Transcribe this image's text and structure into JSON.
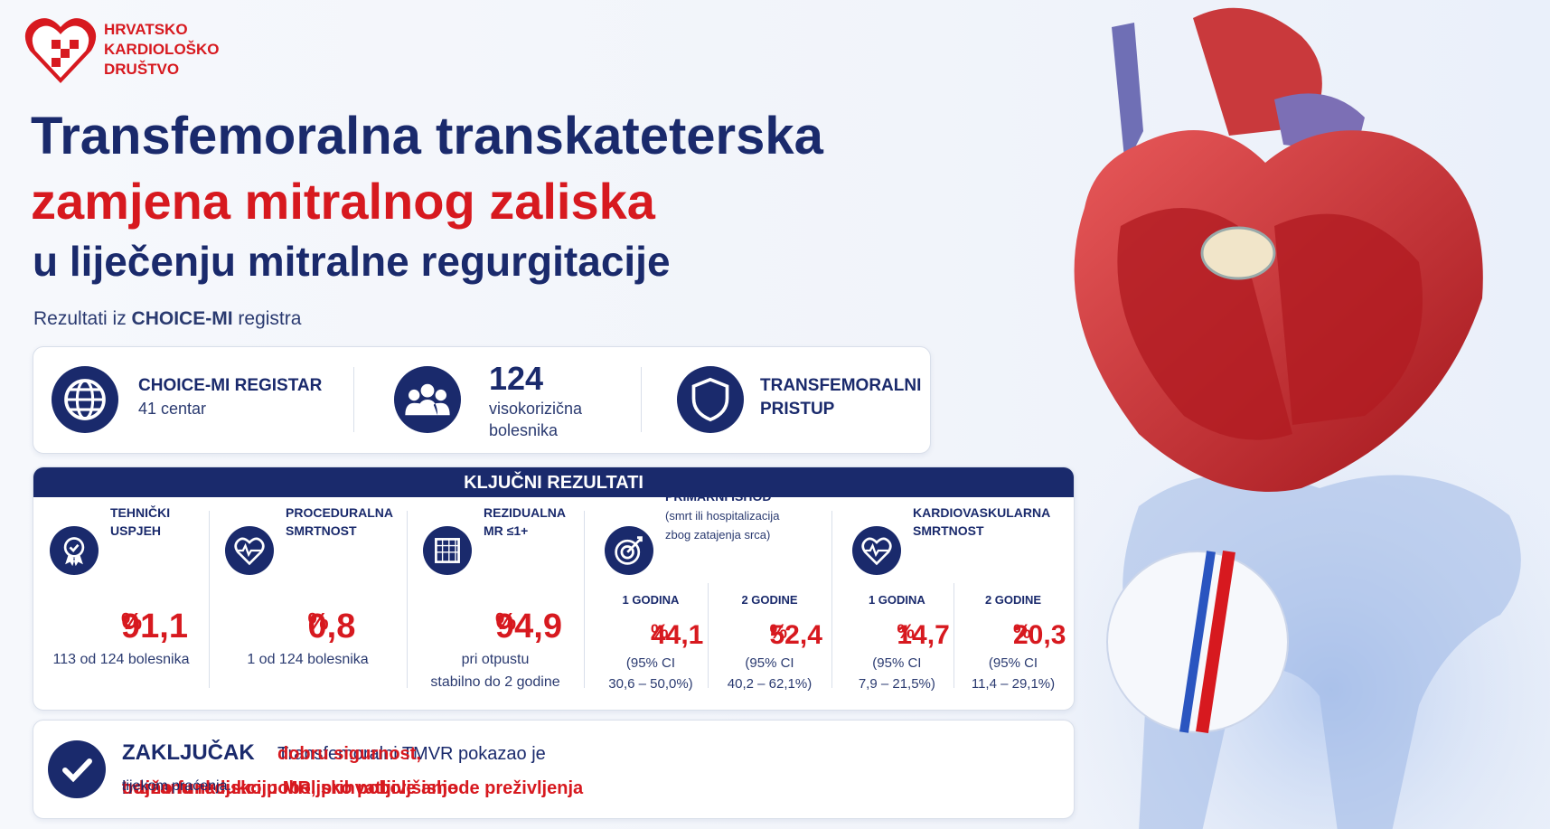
{
  "logo": {
    "lines": [
      "HRVATSKO",
      "KARDIOLOŠKO",
      "DRUŠTVO"
    ]
  },
  "title": {
    "line1": "Transfemoralna transkateterska",
    "line2": "zamjena mitralnog zaliska",
    "line3": "u liječenju mitralne regurgitacije"
  },
  "subtitle": {
    "prefix": "Rezultati iz",
    "highlight": "CHOICE-MI",
    "suffix": "registra"
  },
  "overview": [
    {
      "lines": [
        "CHOICE-MI REGISTAR"
      ],
      "detail": [
        "41 centar"
      ]
    },
    {
      "lines": [
        "124"
      ],
      "detail": [
        "visokorizična",
        "bolesnika"
      ]
    },
    {
      "lines": [
        "TRANSFEMORALNI",
        "PRISTUP"
      ],
      "detail": []
    }
  ],
  "results": {
    "header": "KLJUČNI REZULTATI",
    "items": [
      {
        "label": [
          "TEHNIČKI",
          "USPJEH"
        ],
        "value": "91,1",
        "unit": "%",
        "note": [
          "113 od 124 bolesnika"
        ]
      },
      {
        "label": [
          "PROCEDURALNA",
          "SMRTNOST"
        ],
        "value": "0,8",
        "unit": "%",
        "note": [
          "1 od 124 bolesnika"
        ]
      },
      {
        "label": [
          "REZIDUALNA",
          "MR ≤1+"
        ],
        "value": "94,9",
        "unit": "%",
        "note": [
          "pri otpustu",
          "stabilno do 2 godine"
        ]
      },
      {
        "label": [
          "PRIMARNI ISHOD"
        ],
        "sub": [
          "(smrt ili hospitalizacija",
          "zbog zatajenja srca)"
        ],
        "columns": [
          {
            "period": "1 GODINA",
            "value": "44,1",
            "unit": "%",
            "ci": [
              "(95% CI",
              "30,6 – 50,0%)"
            ]
          },
          {
            "period": "2 GODINE",
            "value": "52,4",
            "unit": "%",
            "ci": [
              "(95% CI",
              "40,2 – 62,1%)"
            ]
          }
        ]
      },
      {
        "label": [
          "KARDIOVASKULARNA",
          "SMRTNOST"
        ],
        "columns": [
          {
            "period": "1 GODINA",
            "value": "14,7",
            "unit": "%",
            "ci": [
              "(95% CI",
              "7,9 – 21,5%)"
            ]
          },
          {
            "period": "2 GODINE",
            "value": "20,3",
            "unit": "%",
            "ci": [
              "(95% CI",
              "11,4 – 29,1%)"
            ]
          }
        ]
      }
    ]
  },
  "conclusion": {
    "heading": "ZAKLJUČAK",
    "lines": [
      [
        {
          "text": "Transfemoralni TMVR pokazao je",
          "emphasis": false
        },
        {
          "text": "dobru sigurnost,",
          "emphasis": true
        }
      ],
      [
        {
          "text": "održanu redukciju MR, prihvatljive ishode preživljenja",
          "emphasis": true
        },
        {
          "text": "i",
          "emphasis": false
        },
        {
          "text": "trajno funkcjsko poboljsko poboljšanje",
          "emphasis": true
        },
        {
          "text": "tijekom praćenja.",
          "emphasis": false,
          "small": true
        }
      ]
    ]
  }
}
